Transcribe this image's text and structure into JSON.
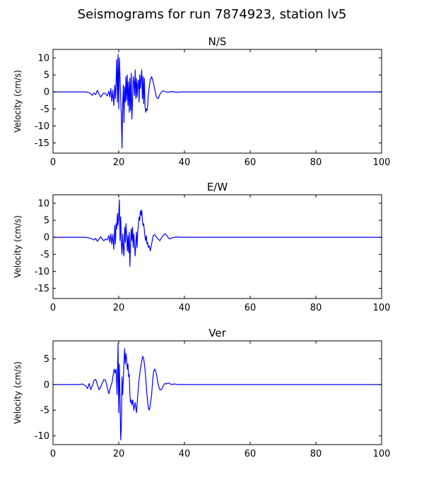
{
  "suptitle": "Seismograms for run 7874923, station lv5",
  "colors": {
    "trace": "#0000ff",
    "axis": "#000000",
    "background": "#ffffff"
  },
  "chart_data": [
    {
      "type": "line",
      "title": "N/S",
      "xlabel": "",
      "ylabel": "Velocity (cm/s)",
      "xlim": [
        0,
        100
      ],
      "ylim": [
        -18,
        12.5
      ],
      "xticks": [
        0,
        20,
        40,
        60,
        80,
        100
      ],
      "yticks": [
        -15,
        -10,
        -5,
        0,
        5,
        10
      ],
      "grid": false,
      "series": [
        {
          "color": "#0000ff",
          "x": [
            0,
            10,
            11,
            12,
            12.5,
            13,
            13.5,
            14,
            14.5,
            15,
            15.5,
            16,
            16.5,
            17,
            17.3,
            17.6,
            17.9,
            18.2,
            18.5,
            18.8,
            19.0,
            19.2,
            19.4,
            19.6,
            19.8,
            20.0,
            20.2,
            20.4,
            20.6,
            20.8,
            21.0,
            21.2,
            21.4,
            21.6,
            21.8,
            22.0,
            22.2,
            22.4,
            22.6,
            22.8,
            23.0,
            23.2,
            23.4,
            23.6,
            23.8,
            24.0,
            24.2,
            24.4,
            24.6,
            24.8,
            25.0,
            25.2,
            25.4,
            25.6,
            25.8,
            26.0,
            26.2,
            26.4,
            26.6,
            26.8,
            27.0,
            27.2,
            27.4,
            27.6,
            27.8,
            28.0,
            28.2,
            28.4,
            28.6,
            28.8,
            29.0,
            29.3,
            29.6,
            30.0,
            30.5,
            31.0,
            31.5,
            32.0,
            32.5,
            33.0,
            33.5,
            34.0,
            34.5,
            35.0,
            35.5,
            36.0,
            37.0,
            38.0,
            39.0,
            40.0,
            42.0,
            45.0,
            100
          ],
          "y": [
            0,
            0,
            -0.2,
            -1.0,
            -0.3,
            -0.8,
            0.5,
            -0.6,
            -1.5,
            -0.8,
            -0.3,
            -0.5,
            -1.2,
            0.2,
            -1.5,
            1.0,
            -2.8,
            0.5,
            -4.0,
            2.0,
            -2.0,
            3.0,
            9.5,
            -3.0,
            11.0,
            -5.0,
            10.0,
            4.0,
            -2.0,
            -7.0,
            -16.5,
            -4.0,
            2.0,
            -9.0,
            1.5,
            -3.0,
            4.5,
            -2.5,
            5.0,
            -4.0,
            3.0,
            -6.0,
            4.0,
            -5.5,
            5.5,
            -8.0,
            -3.0,
            4.5,
            3.0,
            -1.0,
            6.5,
            -2.0,
            4.0,
            -1.5,
            2.5,
            3.5,
            -3.0,
            5.0,
            1.0,
            4.0,
            6.5,
            -2.0,
            4.5,
            -3.5,
            4.0,
            -4.0,
            -6.0,
            -5.0,
            -5.5,
            -4.0,
            -1.0,
            1.5,
            3.5,
            4.5,
            3.0,
            0.5,
            -1.5,
            -2.0,
            -0.8,
            0.0,
            0.3,
            0.2,
            0.0,
            -0.1,
            0.0,
            0.1,
            0.0,
            -0.1,
            0.0,
            0.0,
            0,
            0,
            0
          ]
        }
      ]
    },
    {
      "type": "line",
      "title": "E/W",
      "xlabel": "",
      "ylabel": "Velocity (cm/s)",
      "xlim": [
        0,
        100
      ],
      "ylim": [
        -18,
        12.5
      ],
      "xticks": [
        0,
        20,
        40,
        60,
        80,
        100
      ],
      "yticks": [
        -15,
        -10,
        -5,
        0,
        5,
        10
      ],
      "grid": false,
      "series": [
        {
          "color": "#0000ff",
          "x": [
            0,
            10,
            11,
            12,
            12.5,
            13,
            13.5,
            14,
            14.5,
            15,
            15.5,
            16,
            16.5,
            17,
            17.3,
            17.6,
            17.9,
            18.2,
            18.5,
            18.8,
            19.0,
            19.2,
            19.4,
            19.6,
            19.8,
            20.0,
            20.2,
            20.4,
            20.6,
            20.8,
            21.0,
            21.2,
            21.4,
            21.6,
            21.8,
            22.0,
            22.2,
            22.4,
            22.6,
            22.8,
            23.0,
            23.2,
            23.4,
            23.6,
            23.8,
            24.0,
            24.2,
            24.4,
            24.6,
            24.8,
            25.0,
            25.2,
            25.4,
            25.6,
            25.8,
            26.0,
            26.2,
            26.4,
            26.6,
            26.8,
            27.0,
            27.2,
            27.4,
            27.6,
            27.8,
            28.0,
            28.2,
            28.4,
            28.6,
            28.8,
            29.0,
            29.3,
            29.6,
            30.0,
            30.5,
            31.0,
            31.5,
            32.0,
            32.5,
            33.0,
            33.5,
            34.0,
            34.5,
            35.0,
            35.5,
            36.0,
            37.0,
            38.0,
            39.0,
            40.0,
            45.0,
            100
          ],
          "y": [
            0,
            0,
            -0.2,
            -0.5,
            -0.8,
            -0.3,
            -1.2,
            -0.5,
            0.2,
            -0.6,
            -1.0,
            -0.5,
            -0.8,
            0.5,
            -1.5,
            1.0,
            -2.0,
            0.8,
            -3.5,
            3.5,
            -2.0,
            4.0,
            2.5,
            7.0,
            3.5,
            6.5,
            11.0,
            -1.0,
            6.0,
            -2.0,
            -5.0,
            1.0,
            -3.0,
            -5.5,
            3.0,
            -1.5,
            4.0,
            1.0,
            -4.0,
            0.5,
            -4.5,
            1.5,
            -8.5,
            -2.0,
            2.5,
            -1.0,
            3.0,
            -3.0,
            1.0,
            -2.0,
            -5.5,
            -2.0,
            1.5,
            -3.0,
            2.0,
            3.5,
            6.0,
            5.0,
            7.8,
            6.5,
            8.0,
            5.0,
            3.5,
            4.0,
            2.0,
            0.0,
            -1.0,
            0.5,
            -2.0,
            -1.5,
            -3.0,
            -2.5,
            -4.0,
            -2.0,
            0.5,
            0.8,
            0.0,
            -0.5,
            -1.0,
            -0.2,
            0.5,
            1.0,
            0.7,
            0.0,
            -0.5,
            -0.2,
            0.0,
            0.1,
            0.0,
            0.0,
            0,
            0
          ]
        }
      ]
    },
    {
      "type": "line",
      "title": "Ver",
      "xlabel": "",
      "ylabel": "Velocity (cm/s)",
      "xlim": [
        0,
        100
      ],
      "ylim": [
        -11.7,
        8.5
      ],
      "xticks": [
        0,
        20,
        40,
        60,
        80,
        100
      ],
      "yticks": [
        -10,
        -5,
        0,
        5
      ],
      "grid": false,
      "series": [
        {
          "color": "#0000ff",
          "x": [
            0,
            8,
            9,
            10,
            10.5,
            11,
            11.5,
            12,
            12.5,
            13,
            13.5,
            14,
            14.5,
            15,
            15.5,
            16,
            16.5,
            17,
            17.5,
            18.0,
            18.3,
            18.6,
            18.9,
            19.2,
            19.5,
            19.8,
            20.0,
            20.2,
            20.4,
            20.6,
            20.8,
            21.0,
            21.2,
            21.4,
            21.6,
            21.8,
            22.0,
            22.2,
            22.4,
            22.6,
            22.8,
            23.0,
            23.2,
            23.4,
            23.6,
            23.8,
            24.0,
            24.3,
            24.6,
            25.0,
            25.4,
            25.8,
            26.2,
            26.6,
            27.0,
            27.3,
            27.6,
            28.0,
            28.3,
            28.6,
            29.0,
            29.3,
            29.6,
            30.0,
            30.3,
            30.6,
            31.0,
            31.5,
            32.0,
            32.5,
            33.0,
            33.5,
            34.0,
            34.5,
            35.0,
            35.5,
            36.0,
            37.0,
            38.0,
            39.0,
            40.0,
            45.0,
            100
          ],
          "y": [
            0,
            0,
            0.1,
            -0.3,
            -0.8,
            0.2,
            -1.0,
            -0.2,
            0.8,
            1.0,
            0.0,
            -1.0,
            -0.5,
            0.3,
            1.0,
            0.8,
            -0.5,
            -1.8,
            -0.5,
            0.5,
            1.8,
            3.0,
            2.2,
            3.0,
            -2.0,
            8.0,
            -5.5,
            4.0,
            -3.0,
            -10.8,
            -8.0,
            1.5,
            -2.0,
            1.0,
            4.5,
            7.0,
            4.0,
            6.0,
            5.0,
            3.0,
            4.0,
            1.5,
            2.0,
            -2.0,
            -3.5,
            -3.0,
            -4.0,
            -3.0,
            -5.0,
            -3.5,
            -5.5,
            -2.0,
            1.0,
            3.0,
            4.5,
            5.5,
            5.0,
            3.0,
            0.5,
            -2.0,
            -4.5,
            -5.0,
            -4.0,
            -2.0,
            0.5,
            2.5,
            3.0,
            2.0,
            0.0,
            -1.0,
            -1.0,
            -0.3,
            0.2,
            0.1,
            0.3,
            0.2,
            0.0,
            0.1,
            0.0,
            0.0,
            0,
            0,
            0
          ]
        }
      ]
    }
  ]
}
